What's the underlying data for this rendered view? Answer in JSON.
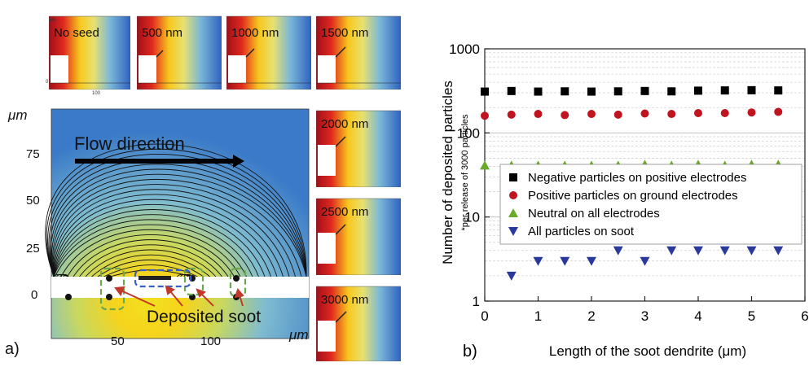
{
  "panel_a": {
    "label": "a)",
    "unit_label": "μm",
    "flow_label": "Flow direction",
    "deposit_label": "Deposited soot",
    "y_ticks": [
      "0",
      "25",
      "50",
      "75"
    ],
    "x_ticks": [
      "50",
      "100"
    ],
    "x_unit": "μm",
    "thumbnails": [
      {
        "label": "No seed"
      },
      {
        "label": "500 nm"
      },
      {
        "label": "1000 nm"
      },
      {
        "label": "1500 nm"
      },
      {
        "label": "2000 nm"
      },
      {
        "label": "2500 nm"
      },
      {
        "label": "3000 nm"
      }
    ],
    "thumb_tick_unit": "μm",
    "thumb_tick_100": "100",
    "thumb_tick_0": "0",
    "colors": {
      "hot": "#c8141e",
      "warm": "#f5d21e",
      "cool": "#3a78c8",
      "soot_outline": "#3a5fc8",
      "green_outline": "#6aa84f",
      "arrow": "#c0392b"
    }
  },
  "panel_b": {
    "label": "b)"
  },
  "chart_data": {
    "type": "scatter",
    "xlabel": "Length of the soot dendrite (μm)",
    "ylabel": "Number of deposited particles",
    "ylabel_note": "*per release of 3000 particles",
    "xlim": [
      0,
      6
    ],
    "ylim": [
      1,
      1000
    ],
    "yscale": "log",
    "x_ticks": [
      0,
      1,
      2,
      3,
      4,
      5,
      6
    ],
    "y_ticks": [
      1,
      10,
      100,
      1000
    ],
    "y_tick_labels": [
      "1",
      "10",
      "100",
      "1000"
    ],
    "grid": true,
    "legend_position": "right",
    "series": [
      {
        "name": "Negative particles on positive electrodes",
        "marker": "square",
        "color": "#000000",
        "x": [
          0,
          0.5,
          1,
          1.5,
          2,
          2.5,
          3,
          3.5,
          4,
          4.5,
          5,
          5.5
        ],
        "y": [
          310,
          315,
          310,
          312,
          310,
          312,
          315,
          312,
          318,
          320,
          322,
          320
        ]
      },
      {
        "name": "Positive particles on ground electrodes",
        "marker": "circle",
        "color": "#c0141e",
        "x": [
          0,
          0.5,
          1,
          1.5,
          2,
          2.5,
          3,
          3.5,
          4,
          4.5,
          5,
          5.5
        ],
        "y": [
          160,
          165,
          168,
          163,
          168,
          165,
          170,
          168,
          172,
          172,
          175,
          178
        ]
      },
      {
        "name": "Neutral on all electrodes",
        "marker": "triangle-up",
        "color": "#6aaa2a",
        "x": [
          0,
          0.5,
          1,
          1.5,
          2,
          2.5,
          3,
          3.5,
          4,
          4.5,
          5,
          5.5
        ],
        "y": [
          41,
          41,
          41,
          41,
          41,
          41,
          42,
          41,
          42,
          41,
          42,
          42
        ]
      },
      {
        "name": "All particles on soot",
        "marker": "triangle-down",
        "color": "#2a3a9a",
        "x": [
          0.5,
          1,
          1.5,
          2,
          2.5,
          3,
          3.5,
          4,
          4.5,
          5,
          5.5
        ],
        "y": [
          2,
          3,
          3,
          3,
          4,
          3,
          4,
          4,
          4,
          4,
          4
        ]
      }
    ]
  }
}
